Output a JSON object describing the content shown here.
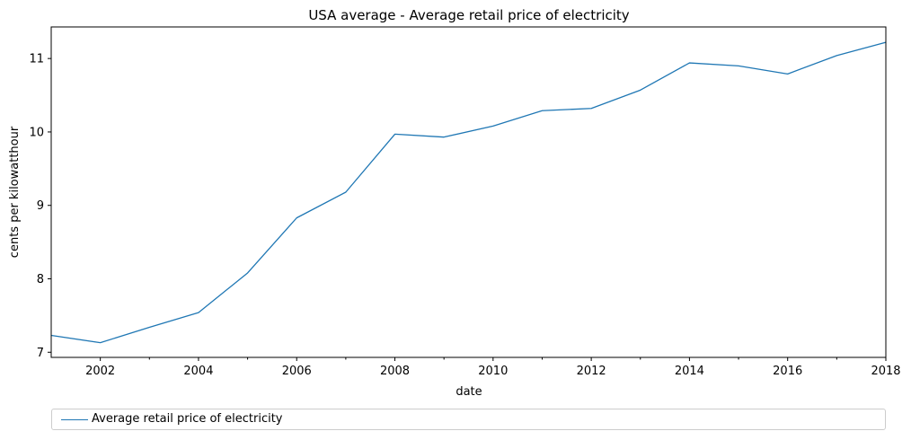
{
  "chart_data": {
    "type": "line",
    "title": "USA average - Average retail price of electricity",
    "xlabel": "date",
    "ylabel": "cents per kilowatthour",
    "x": [
      2001,
      2002,
      2003,
      2004,
      2005,
      2006,
      2007,
      2008,
      2009,
      2010,
      2011,
      2012,
      2013,
      2014,
      2015,
      2016,
      2017,
      2018
    ],
    "series": [
      {
        "name": "Average retail price of electricity",
        "color": "#1f77b4",
        "values": [
          7.23,
          7.13,
          7.34,
          7.54,
          8.08,
          8.83,
          9.18,
          9.97,
          9.93,
          10.08,
          10.29,
          10.32,
          10.57,
          10.94,
          10.9,
          10.79,
          11.04,
          11.22
        ]
      }
    ],
    "xlim": [
      2001,
      2018
    ],
    "ylim": [
      6.93,
      11.43
    ],
    "x_major_ticks": [
      2002,
      2004,
      2006,
      2008,
      2010,
      2012,
      2014,
      2016,
      2018
    ],
    "x_minor_ticks": [
      2003,
      2005,
      2007,
      2009,
      2011,
      2013,
      2015,
      2017
    ],
    "y_ticks": [
      7,
      8,
      9,
      10,
      11
    ],
    "grid": false,
    "legend_position": "bottom"
  }
}
